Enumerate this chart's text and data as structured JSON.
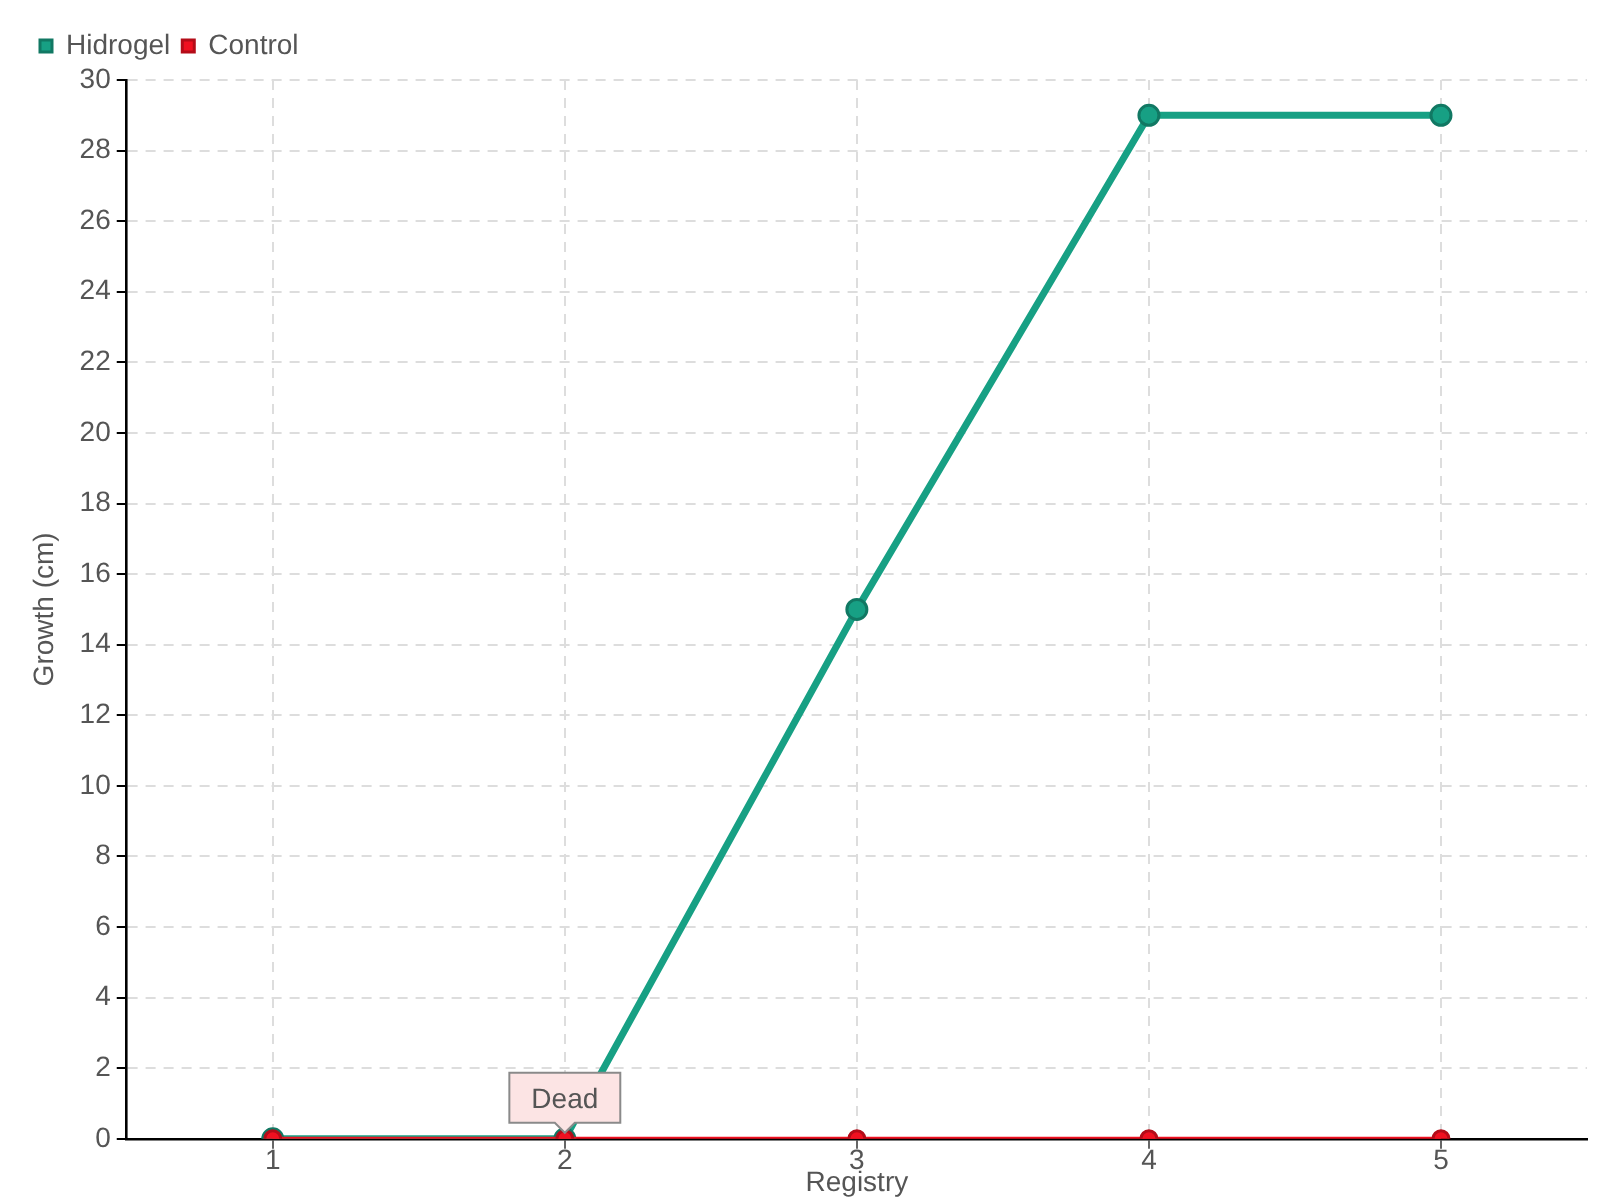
{
  "chart_data": {
    "type": "line",
    "xlabel": "Registry",
    "ylabel": "Growth (cm)",
    "categories": [
      "1",
      "2",
      "3",
      "4",
      "5"
    ],
    "series": [
      {
        "name": "Hidrogel",
        "color": "#17a084",
        "values": [
          0,
          0,
          15,
          29,
          29
        ]
      },
      {
        "name": "Control",
        "color": "#f01020",
        "values": [
          0,
          0,
          0,
          0,
          0
        ]
      }
    ],
    "ylim": [
      0,
      30
    ],
    "yticks": [
      0,
      2,
      4,
      6,
      8,
      10,
      12,
      14,
      16,
      18,
      20,
      22,
      24,
      26,
      28,
      30
    ],
    "grid": true,
    "legend": "top left",
    "marker": "circle",
    "annotations": [
      {
        "text": "Dead",
        "x": "2",
        "y": 0
      }
    ]
  }
}
